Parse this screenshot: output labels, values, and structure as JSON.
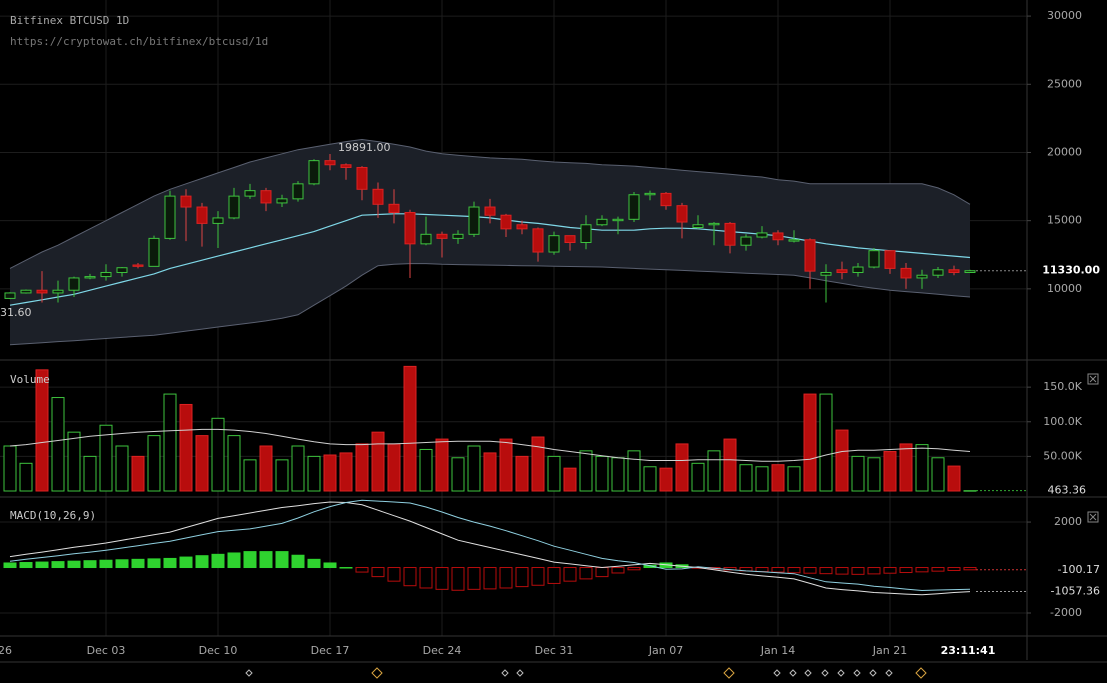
{
  "chart_data": [
    {
      "type": "candlestick",
      "title": "Bitfinex BTCUSD 1D",
      "subtitle": "https://cryptowat.ch/bitfinex/btcusd/1d",
      "categories": [
        null,
        null,
        null,
        null,
        null,
        null,
        "Dec 03",
        null,
        null,
        null,
        null,
        null,
        null,
        "Dec 10",
        null,
        null,
        null,
        null,
        null,
        null,
        "Dec 17",
        null,
        null,
        null,
        null,
        null,
        null,
        "Dec 24",
        null,
        null,
        null,
        null,
        null,
        null,
        "Dec 31",
        null,
        null,
        null,
        null,
        null,
        null,
        "Jan 07",
        null,
        null,
        null,
        null,
        null,
        null,
        "Jan 14",
        null,
        null,
        null,
        null,
        null,
        null,
        "Jan 21",
        null,
        null,
        null,
        null,
        null
      ],
      "x_partial_label": "26",
      "countdown": "23:11:41",
      "open": [
        9300,
        9700,
        9900,
        9700,
        9900,
        10800,
        10900,
        11200,
        11750,
        11650,
        13700,
        16800,
        16000,
        14800,
        15200,
        16800,
        17200,
        16300,
        16600,
        17700,
        19400,
        19100,
        18900,
        17300,
        16200,
        15600,
        13300,
        14000,
        13700,
        14000,
        16000,
        15400,
        14700,
        14400,
        12700,
        13900,
        13400,
        14700,
        15000,
        15100,
        16900,
        17000,
        16100,
        14500,
        14700,
        14800,
        13200,
        13800,
        14100,
        13500,
        13600,
        11000,
        11400,
        11200,
        11600,
        12800,
        11500,
        10800,
        11000,
        11400,
        11200
      ],
      "high": [
        9750,
        9950,
        11300,
        10600,
        10900,
        11100,
        11800,
        11600,
        11900,
        13900,
        17200,
        17300,
        16300,
        15700,
        17400,
        17700,
        17400,
        16900,
        17900,
        19500,
        19891,
        19200,
        19000,
        17800,
        17300,
        15800,
        15300,
        14200,
        14300,
        16400,
        16600,
        15500,
        15000,
        14500,
        14200,
        13900,
        15400,
        15400,
        15300,
        17100,
        17200,
        17100,
        16300,
        15400,
        14900,
        14900,
        14000,
        14600,
        14300,
        14300,
        13700,
        11800,
        12000,
        11900,
        13000,
        12800,
        11900,
        11400,
        11600,
        11700,
        11400
      ],
      "low": [
        9250,
        9650,
        9000,
        9000,
        9400,
        10700,
        10600,
        10900,
        11500,
        11650,
        13600,
        13500,
        13100,
        13000,
        15100,
        16600,
        15700,
        16000,
        16400,
        17600,
        18700,
        18000,
        16500,
        15200,
        14800,
        10800,
        13200,
        12300,
        13300,
        13800,
        14800,
        13800,
        14000,
        12000,
        12500,
        12800,
        12900,
        14600,
        14000,
        14900,
        16500,
        15800,
        13700,
        14400,
        13200,
        12600,
        12800,
        13700,
        13200,
        13400,
        10000,
        9000,
        10700,
        10900,
        11500,
        11100,
        10000,
        10000,
        10800,
        11000,
        11200
      ],
      "close": [
        9700,
        9900,
        9700,
        9900,
        10800,
        10900,
        11200,
        11550,
        11650,
        13700,
        16800,
        16000,
        14800,
        15200,
        16800,
        17200,
        16300,
        16600,
        17700,
        19400,
        19100,
        18900,
        17300,
        16200,
        15600,
        13300,
        14000,
        13700,
        14000,
        16000,
        15400,
        14400,
        14400,
        12700,
        13900,
        13400,
        14700,
        15100,
        15100,
        16900,
        17000,
        16100,
        14900,
        14700,
        14800,
        13200,
        13800,
        14100,
        13600,
        13600,
        11300,
        11200,
        11200,
        11600,
        12800,
        11500,
        10800,
        11000,
        11400,
        11200,
        11330
      ],
      "last_close_label": "11330.00",
      "peak_label": "19891.00",
      "left_edge_label": "31.60",
      "bands": {
        "upper": [
          11500,
          12100,
          12700,
          13200,
          13800,
          14400,
          15000,
          15600,
          16200,
          16800,
          17300,
          17700,
          18100,
          18500,
          18900,
          19300,
          19600,
          19900,
          20200,
          20400,
          20600,
          20800,
          20950,
          20800,
          20600,
          20400,
          20100,
          19900,
          19800,
          19700,
          19600,
          19550,
          19500,
          19400,
          19300,
          19250,
          19200,
          19100,
          19050,
          19000,
          18900,
          18800,
          18700,
          18600,
          18500,
          18400,
          18300,
          18200,
          18000,
          17900,
          17700,
          17700,
          17700,
          17700,
          17700,
          17700,
          17700,
          17700,
          17400,
          16900,
          16200
        ],
        "middle": [
          8800,
          9000,
          9200,
          9400,
          9600,
          9900,
          10200,
          10500,
          10800,
          11100,
          11500,
          11800,
          12100,
          12400,
          12700,
          13000,
          13300,
          13600,
          13900,
          14200,
          14600,
          15000,
          15400,
          15450,
          15500,
          15500,
          15450,
          15400,
          15350,
          15300,
          15200,
          15050,
          14900,
          14800,
          14650,
          14500,
          14400,
          14300,
          14300,
          14300,
          14400,
          14450,
          14450,
          14400,
          14300,
          14200,
          14100,
          14000,
          13900,
          13700,
          13500,
          13300,
          13150,
          13000,
          12900,
          12800,
          12700,
          12600,
          12500,
          12400,
          12300
        ],
        "lower": [
          5900,
          5980,
          6050,
          6130,
          6200,
          6280,
          6360,
          6440,
          6520,
          6600,
          6750,
          6900,
          7050,
          7200,
          7350,
          7500,
          7650,
          7850,
          8100,
          8800,
          9500,
          10200,
          11000,
          11700,
          11800,
          11850,
          11850,
          11800,
          11780,
          11760,
          11740,
          11720,
          11700,
          11680,
          11660,
          11640,
          11620,
          11600,
          11550,
          11500,
          11450,
          11400,
          11350,
          11300,
          11250,
          11200,
          11150,
          11100,
          11050,
          11000,
          10800,
          10600,
          10400,
          10200,
          10050,
          9900,
          9800,
          9700,
          9600,
          9500,
          9400
        ],
        "fill": "#1c2028",
        "edge": "#5a6070",
        "middle_color": "#7fd8e8"
      },
      "up_color": "#3ec33e",
      "down_color": "#b80d0d",
      "ylim": [
        5150,
        31180
      ],
      "yticks": [
        10000,
        15000,
        20000,
        25000,
        30000
      ],
      "grid": true
    },
    {
      "type": "bar",
      "title": "Volume",
      "values": [
        65000,
        40000,
        175000,
        135000,
        85000,
        50000,
        95000,
        65000,
        50000,
        80000,
        140000,
        125000,
        80000,
        105000,
        80000,
        45000,
        65000,
        45000,
        65000,
        50000,
        52000,
        55000,
        68000,
        85000,
        68000,
        180000,
        60000,
        75000,
        48000,
        65000,
        55000,
        75000,
        50000,
        78000,
        50000,
        33000,
        58000,
        50000,
        48000,
        58000,
        35000,
        33000,
        68000,
        40000,
        58000,
        75000,
        38000,
        35000,
        38000,
        35000,
        140000,
        140000,
        88000,
        50000,
        48000,
        57000,
        68000,
        67000,
        48000,
        36000,
        463.36
      ],
      "ma": [
        65000,
        67000,
        70000,
        73000,
        76000,
        79000,
        81000,
        83000,
        85000,
        86000,
        87000,
        88000,
        89000,
        89000,
        88000,
        86000,
        83000,
        79000,
        75000,
        71000,
        68000,
        67000,
        67000,
        68000,
        68000,
        69000,
        70000,
        71000,
        72000,
        72000,
        72000,
        70000,
        67000,
        64000,
        60000,
        57000,
        54000,
        51000,
        48000,
        46000,
        44000,
        44000,
        44000,
        45000,
        45000,
        45000,
        44000,
        43000,
        43000,
        44000,
        46000,
        52000,
        57000,
        59000,
        59000,
        60000,
        61000,
        62000,
        61000,
        59000,
        57000
      ],
      "ma_color": "#d0d0d0",
      "ylim": [
        0,
        182000
      ],
      "yticks": [
        {
          "value": 50000,
          "label": "50.00K"
        },
        {
          "value": 100000,
          "label": "100.0K"
        },
        {
          "value": 150000,
          "label": "150.0K"
        }
      ],
      "grid": true
    },
    {
      "type": "macd",
      "title": "MACD(10,26,9)",
      "histogram": [
        200,
        220,
        240,
        260,
        280,
        300,
        320,
        340,
        360,
        380,
        400,
        460,
        520,
        580,
        640,
        700,
        700,
        700,
        540,
        360,
        200,
        0,
        -200,
        -400,
        -600,
        -800,
        -900,
        -960,
        -1000,
        -960,
        -940,
        -900,
        -840,
        -780,
        -700,
        -600,
        -500,
        -400,
        -240,
        -100,
        100,
        200,
        120,
        -30,
        -70,
        -110,
        -150,
        -180,
        -200,
        -230,
        -250,
        -270,
        -290,
        -300,
        -280,
        -250,
        -220,
        -190,
        -160,
        -130,
        -100.17
      ],
      "macd": [
        480,
        580,
        680,
        780,
        890,
        980,
        1080,
        1200,
        1320,
        1440,
        1560,
        1760,
        1960,
        2160,
        2280,
        2400,
        2520,
        2640,
        2720,
        2810,
        2880,
        2860,
        2760,
        2520,
        2280,
        2040,
        1760,
        1480,
        1200,
        1040,
        880,
        720,
        560,
        400,
        240,
        160,
        80,
        0,
        60,
        120,
        180,
        120,
        60,
        0,
        -100,
        -200,
        -300,
        -370,
        -430,
        -500,
        -700,
        -900,
        -970,
        -1030,
        -1100,
        -1130,
        -1170,
        -1200,
        -1150,
        -1100,
        -1057.36
      ],
      "signal": [
        280,
        360,
        440,
        520,
        610,
        680,
        760,
        860,
        960,
        1060,
        1160,
        1300,
        1440,
        1580,
        1640,
        1700,
        1820,
        1940,
        2180,
        2450,
        2680,
        2860,
        2960,
        2920,
        2880,
        2840,
        2660,
        2440,
        2200,
        2000,
        1820,
        1620,
        1400,
        1180,
        940,
        760,
        580,
        400,
        300,
        220,
        80,
        -80,
        -60,
        30,
        -30,
        -90,
        -150,
        -190,
        -230,
        -270,
        -450,
        -630,
        -680,
        -730,
        -820,
        -880,
        -950,
        -1010,
        -990,
        -970,
        -957.19
      ],
      "up_color": "#2fd32f",
      "down_color": "#b80d0d",
      "macd_color": "#e0e0e0",
      "signal_color": "#8fd0e0",
      "ylim": [
        -2880,
        2970
      ],
      "yticks": [
        2000,
        -2000
      ],
      "grid": true
    }
  ]
}
